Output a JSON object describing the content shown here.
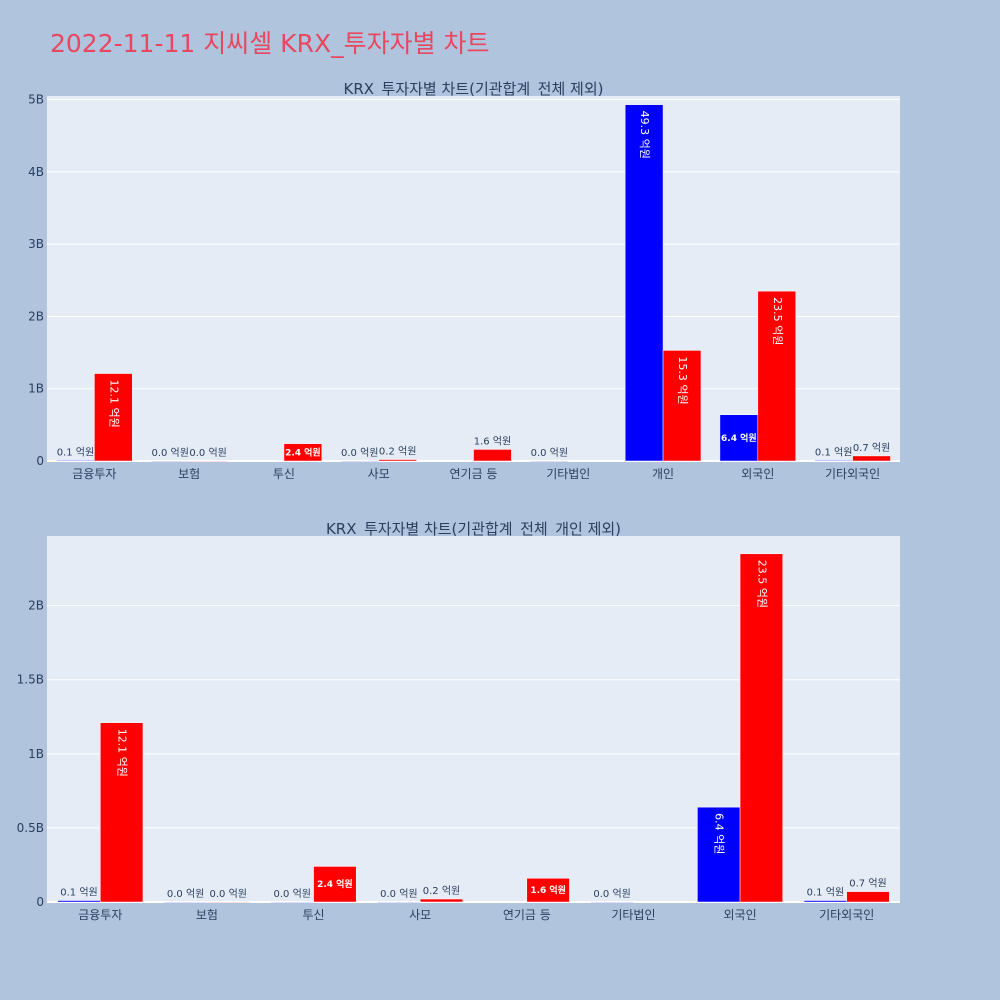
{
  "page": {
    "title": "2022-11-11 지씨셀 KRX_투자자별 차트"
  },
  "chart_data": [
    {
      "type": "bar",
      "title": "KRX_투자자별 차트(기관합계_전체 제외)",
      "categories": [
        "금융투자",
        "보험",
        "투신",
        "사모",
        "연기금 등",
        "기타법인",
        "개인",
        "외국인",
        "기타외국인"
      ],
      "ylim": [
        0,
        5050000000
      ],
      "yticks": [
        0,
        1000000000,
        2000000000,
        3000000000,
        4000000000,
        5000000000
      ],
      "ytick_labels": [
        "0",
        "1B",
        "2B",
        "3B",
        "4B",
        "5B"
      ],
      "grid": true,
      "series": [
        {
          "color": "#0000ff",
          "values": [
            10000000,
            0,
            null,
            0,
            null,
            0,
            4930000000,
            640000000,
            10000000
          ],
          "labels": [
            "0.1 억원",
            "0.0 억원",
            "",
            "0.0 억원",
            "",
            "0.0 억원",
            "49.3 억원",
            "6.4 억원",
            "0.1 억원"
          ]
        },
        {
          "color": "#ff0000",
          "values": [
            1210000000,
            0,
            240000000,
            20000000,
            160000000,
            null,
            1530000000,
            2350000000,
            70000000
          ],
          "labels": [
            "12.1 억원",
            "0.0 억원",
            "2.4 억원",
            "0.2 억원",
            "1.6 억원",
            "",
            "15.3 억원",
            "23.5 억원",
            "0.7 억원"
          ]
        }
      ]
    },
    {
      "type": "bar",
      "title": "KRX_투자자별 차트(기관합계_전체_개인 제외)",
      "categories": [
        "금융투자",
        "보험",
        "투신",
        "사모",
        "연기금 등",
        "기타법인",
        "외국인",
        "기타외국인"
      ],
      "ylim": [
        0,
        2470000000
      ],
      "yticks": [
        0,
        500000000,
        1000000000,
        1500000000,
        2000000000
      ],
      "ytick_labels": [
        "0",
        "0.5B",
        "1B",
        "1.5B",
        "2B"
      ],
      "grid": true,
      "series": [
        {
          "color": "#0000ff",
          "values": [
            10000000,
            0,
            0,
            0,
            null,
            0,
            640000000,
            10000000
          ],
          "labels": [
            "0.1 억원",
            "0.0 억원",
            "0.0 억원",
            "0.0 억원",
            "",
            "0.0 억원",
            "6.4 억원",
            "0.1 억원"
          ]
        },
        {
          "color": "#ff0000",
          "values": [
            1210000000,
            0,
            240000000,
            20000000,
            160000000,
            null,
            2350000000,
            70000000
          ],
          "labels": [
            "12.1 억원",
            "0.0 억원",
            "2.4 억원",
            "0.2 억원",
            "1.6 억원",
            "",
            "23.5 억원",
            "0.7 억원"
          ]
        }
      ]
    }
  ]
}
